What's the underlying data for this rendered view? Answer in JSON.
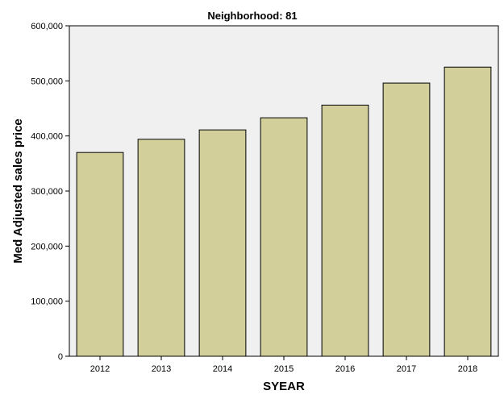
{
  "chart_data": {
    "type": "bar",
    "title": "Neighborhood: 81",
    "xlabel": "SYEAR",
    "ylabel": "Med Adjusted sales price",
    "categories": [
      "2012",
      "2013",
      "2014",
      "2015",
      "2016",
      "2017",
      "2018"
    ],
    "values": [
      370000,
      394000,
      411000,
      433000,
      456000,
      496000,
      525000
    ],
    "ylim": [
      0,
      600000
    ],
    "yticks": [
      0,
      100000,
      200000,
      300000,
      400000,
      500000,
      600000
    ],
    "ytick_labels": [
      "0",
      "100,000",
      "200,000",
      "300,000",
      "400,000",
      "500,000",
      "600,000"
    ],
    "grid": false,
    "legend": "none",
    "colors": {
      "bar_fill": "#d3cf9b",
      "bar_stroke": "#000000",
      "plot_background": "#f0f0f0",
      "page_background": "#ffffff"
    }
  }
}
